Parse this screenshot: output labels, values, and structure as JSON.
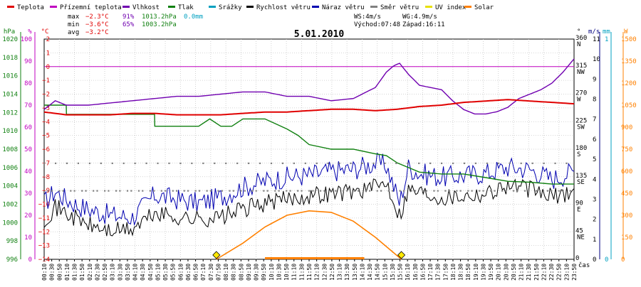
{
  "chart_data": {
    "type": "line",
    "title": "5.01.2010",
    "xlabel": "čas",
    "legend": [
      {
        "key": "teplota",
        "label": "Teplota",
        "color": "#e00000"
      },
      {
        "key": "prizemni",
        "label": "Přízemní teplota",
        "color": "#c000c0"
      },
      {
        "key": "vlhkost",
        "label": "Vlhkost",
        "color": "#7000b0"
      },
      {
        "key": "tlak",
        "label": "Tlak",
        "color": "#108010"
      },
      {
        "key": "srazky",
        "label": "Srážky",
        "color": "#00a0c0"
      },
      {
        "key": "rychlost",
        "label": "Rychlost větru",
        "color": "#000000"
      },
      {
        "key": "naraz",
        "label": "Náraz větru",
        "color": "#0000b0"
      },
      {
        "key": "smer",
        "label": "Směr větru",
        "color": "#808080"
      },
      {
        "key": "uv",
        "label": "UV index",
        "color": "#e8e000"
      },
      {
        "key": "solar",
        "label": "Solar",
        "color": "#ff8000"
      }
    ],
    "stats": {
      "max": {
        "label": "max",
        "temp": "−2.3°C",
        "hum": "91%",
        "press": "1013.2hPa",
        "rain": "0.0mm"
      },
      "min": {
        "label": "min",
        "temp": "−3.6°C",
        "hum": "65%",
        "press": "1003.2hPa"
      },
      "avg": {
        "label": "avg",
        "temp": "−3.2°C"
      },
      "ws": "WS:4m/s",
      "wg": "WG:4.9m/s",
      "sunrise": "Východ:07:48",
      "sunset": "Západ:16:11"
    },
    "axes": {
      "pressure": {
        "unit": "hPa",
        "ticks": [
          "1020",
          "1018",
          "1016",
          "1014",
          "1012",
          "1010",
          "1008",
          "1006",
          "1004",
          "1002",
          "1000",
          "998",
          "996"
        ],
        "range": [
          996,
          1020
        ]
      },
      "humidity": {
        "unit": "%",
        "ticks": [
          "100",
          "90",
          "80",
          "70",
          "60",
          "50",
          "40",
          "30",
          "20",
          "10",
          "0"
        ],
        "range": [
          0,
          100
        ]
      },
      "temperature": {
        "unit": "°C",
        "ticks": [
          "2",
          "1",
          "0",
          "−1",
          "−2",
          "−3",
          "−4",
          "−5",
          "−6",
          "−7",
          "−8",
          "−9",
          "−10",
          "−11",
          "−12",
          "−13",
          "−14"
        ],
        "range": [
          -14,
          2
        ]
      },
      "direction": {
        "unit": "°",
        "ticks": [
          "360",
          "315",
          "270",
          "225",
          "180",
          "135",
          "90",
          "45",
          "0"
        ],
        "labels": [
          "N",
          "NW",
          "W",
          "SW",
          "S",
          "SE",
          "E",
          "NE",
          ""
        ],
        "range": [
          0,
          360
        ]
      },
      "wind": {
        "unit": "m/s",
        "ticks": [
          "11",
          "10",
          "9",
          "8",
          "7",
          "6",
          "5",
          "4",
          "3",
          "2",
          "1",
          "0"
        ],
        "range": [
          0,
          11
        ]
      },
      "rain": {
        "unit": "mm",
        "ticks": [
          "1",
          "0"
        ],
        "range": [
          0,
          1
        ]
      },
      "solar": {
        "unit": "W",
        "ticks": [
          "1500",
          "1350",
          "1200",
          "1050",
          "900",
          "750",
          "600",
          "450",
          "300",
          "150",
          "0"
        ],
        "range": [
          0,
          1500
        ]
      }
    },
    "x_ticks": [
      "00:10",
      "00:30",
      "00:50",
      "01:10",
      "01:30",
      "01:50",
      "02:10",
      "02:30",
      "02:50",
      "03:10",
      "03:30",
      "03:50",
      "04:10",
      "04:30",
      "04:50",
      "05:10",
      "05:30",
      "05:50",
      "06:10",
      "06:30",
      "06:50",
      "07:10",
      "07:30",
      "07:50",
      "08:10",
      "08:30",
      "08:50",
      "09:10",
      "09:30",
      "09:50",
      "10:10",
      "10:30",
      "10:50",
      "11:10",
      "11:30",
      "11:50",
      "12:10",
      "12:30",
      "12:50",
      "13:10",
      "13:30",
      "13:50",
      "14:10",
      "14:30",
      "14:50",
      "15:10",
      "15:30",
      "15:50",
      "16:10",
      "16:30",
      "16:50",
      "17:10",
      "17:30",
      "17:50",
      "18:10",
      "18:30",
      "18:50",
      "19:10",
      "19:30",
      "19:50",
      "20:10",
      "20:30",
      "20:50",
      "21:10",
      "21:30",
      "21:50",
      "22:10",
      "22:30",
      "22:50",
      "23:10",
      "23:50"
    ],
    "series": [
      {
        "name": "Teplota",
        "axis": "temperature",
        "hours": [
          0,
          1,
          2,
          3,
          4,
          5,
          6,
          7,
          8,
          9,
          10,
          11,
          12,
          13,
          14,
          15,
          16,
          17,
          18,
          19,
          20,
          21,
          22,
          23,
          24
        ],
        "values": [
          -3.3,
          -3.5,
          -3.5,
          -3.5,
          -3.4,
          -3.4,
          -3.5,
          -3.5,
          -3.5,
          -3.4,
          -3.3,
          -3.3,
          -3.2,
          -3.1,
          -3.1,
          -3.2,
          -3.1,
          -2.9,
          -2.8,
          -2.6,
          -2.5,
          -2.4,
          -2.5,
          -2.6,
          -2.7
        ]
      },
      {
        "name": "Vlhkost",
        "axis": "humidity",
        "hours": [
          0,
          0.5,
          1,
          2,
          3,
          4,
          5,
          6,
          7,
          8,
          9,
          10,
          11,
          12,
          13,
          14,
          15,
          15.5,
          15.85,
          16.1,
          16.5,
          17,
          17.5,
          18,
          18.5,
          19,
          19.5,
          20,
          20.5,
          21,
          21.5,
          22,
          22.5,
          23,
          23.5,
          24
        ],
        "values": [
          68,
          72,
          70,
          70,
          71,
          72,
          73,
          74,
          74,
          75,
          76,
          76,
          74,
          74,
          72,
          73,
          78,
          85,
          88,
          89,
          84,
          79,
          78,
          77,
          72,
          68,
          66,
          66,
          67,
          69,
          73,
          75,
          77,
          80,
          85,
          91
        ]
      },
      {
        "name": "Tlak",
        "axis": "pressure",
        "hours": [
          0,
          1,
          1.01,
          5,
          5.01,
          7,
          7.5,
          8,
          8.5,
          9,
          10,
          11,
          11.5,
          12,
          13,
          14,
          15,
          15.5,
          16,
          17,
          18,
          19,
          20,
          21,
          22,
          23,
          24
        ],
        "values": [
          1012.8,
          1012.8,
          1011.8,
          1011.8,
          1010.5,
          1010.5,
          1011.3,
          1010.5,
          1010.5,
          1011.3,
          1011.3,
          1010.2,
          1009.5,
          1008.5,
          1008.0,
          1008.0,
          1007.5,
          1007.3,
          1006.5,
          1005.5,
          1005.3,
          1005.3,
          1004.9,
          1004.5,
          1004.4,
          1004.2,
          1004.2
        ]
      },
      {
        "name": "Rychlost větru",
        "axis": "wind",
        "hours": [
          0,
          0.5,
          1,
          1.5,
          2,
          3,
          4,
          5,
          6,
          7,
          8,
          9,
          10,
          11,
          12,
          13,
          14,
          15,
          15.5,
          16.1,
          16.5,
          17,
          18,
          19,
          20,
          21,
          22,
          23,
          24
        ],
        "values": [
          2.0,
          2.6,
          2.3,
          2.0,
          1.7,
          1.4,
          1.5,
          2.3,
          2.1,
          2.0,
          2.1,
          2.5,
          2.8,
          3.0,
          3.2,
          3.3,
          3.4,
          3.6,
          3.9,
          2.2,
          3.5,
          3.4,
          3.1,
          3.2,
          3.3,
          3.7,
          3.5,
          3.1,
          3.4
        ]
      },
      {
        "name": "Náraz větru",
        "axis": "wind",
        "hours": [
          0,
          0.5,
          1,
          1.5,
          2,
          3,
          4,
          5,
          6,
          7,
          8,
          9,
          10,
          11,
          12,
          13,
          14,
          15,
          15.5,
          16.1,
          16.5,
          17,
          18,
          19,
          20,
          21,
          22,
          23,
          24
        ],
        "values": [
          2.8,
          3.4,
          3.0,
          2.7,
          2.5,
          2.2,
          2.1,
          3.2,
          3.0,
          2.8,
          3.1,
          3.6,
          3.9,
          4.1,
          4.2,
          4.4,
          4.5,
          4.8,
          4.7,
          2.8,
          4.6,
          4.3,
          4.1,
          4.2,
          4.3,
          4.6,
          4.5,
          4.0,
          4.4
        ]
      },
      {
        "name": "Solar",
        "axis": "solar",
        "hours": [
          7.8,
          9,
          10,
          11,
          12,
          13,
          14,
          15,
          16.18
        ],
        "values": [
          0,
          110,
          220,
          300,
          330,
          320,
          260,
          150,
          0
        ]
      }
    ],
    "sun_markers": [
      {
        "label": "Východ",
        "hour": 7.8
      },
      {
        "label": "Západ",
        "hour": 16.18
      }
    ]
  }
}
